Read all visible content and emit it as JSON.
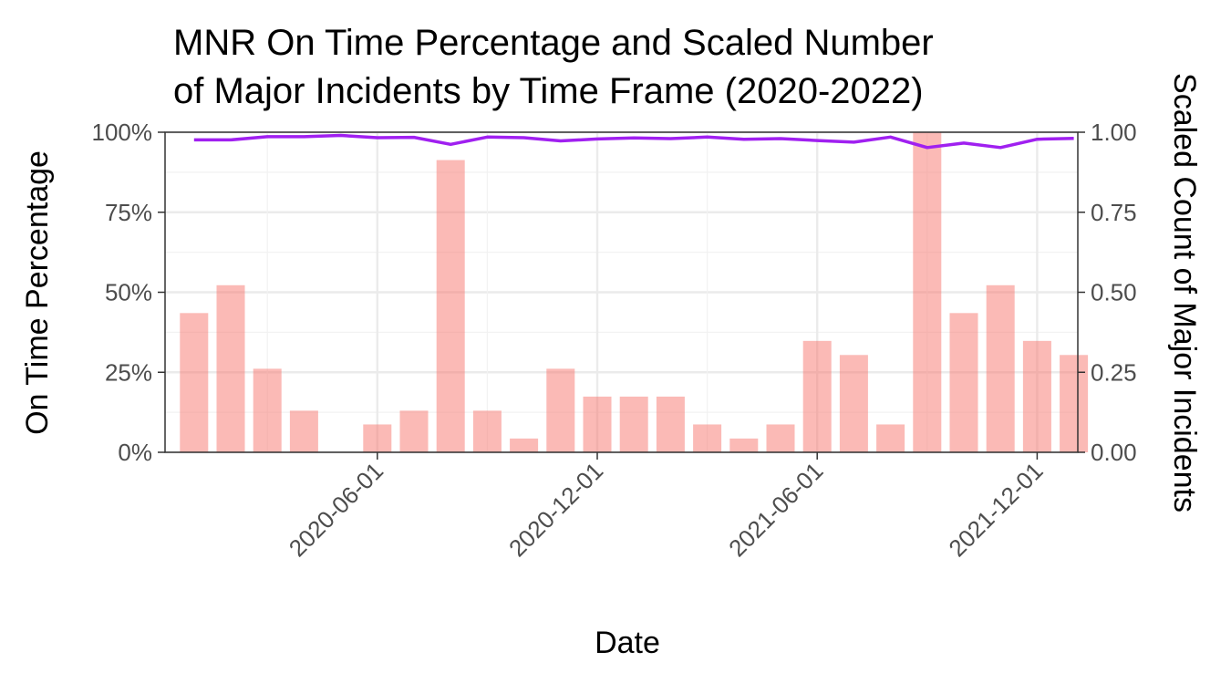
{
  "chart_data": {
    "type": "bar+line",
    "title_lines": [
      "MNR On Time Percentage and Scaled Number",
      "of Major Incidents by Time Frame (2020-2022)"
    ],
    "xlabel": "Date",
    "ylabel_left": "On Time Percentage",
    "ylabel_right": "Scaled Count of Major Incidents",
    "y_left_ticks": [
      "0%",
      "25%",
      "50%",
      "75%",
      "100%"
    ],
    "y_right_ticks": [
      "0.00",
      "0.25",
      "0.50",
      "0.75",
      "1.00"
    ],
    "x_ticks": [
      "2020-06-01",
      "2020-12-01",
      "2021-06-01",
      "2021-12-01"
    ],
    "ylim": [
      0,
      1
    ],
    "months": [
      "2020-01",
      "2020-02",
      "2020-03",
      "2020-04",
      "2020-05",
      "2020-06",
      "2020-07",
      "2020-08",
      "2020-09",
      "2020-10",
      "2020-11",
      "2020-12",
      "2021-01",
      "2021-02",
      "2021-03",
      "2021-04",
      "2021-05",
      "2021-06",
      "2021-07",
      "2021-08",
      "2021-09",
      "2021-10",
      "2021-11",
      "2021-12",
      "2022-01"
    ],
    "series": [
      {
        "name": "Scaled Count of Major Incidents",
        "kind": "bar",
        "color": "#F8766D",
        "values": [
          0.435,
          0.522,
          0.261,
          0.13,
          0.0,
          0.087,
          0.13,
          0.913,
          0.13,
          0.043,
          0.261,
          0.174,
          0.174,
          0.174,
          0.087,
          0.043,
          0.087,
          0.348,
          0.304,
          0.087,
          1.0,
          0.435,
          0.522,
          0.348,
          0.304
        ]
      },
      {
        "name": "On Time Percentage",
        "kind": "line",
        "color": "#A020F0",
        "values": [
          0.976,
          0.976,
          0.986,
          0.986,
          0.99,
          0.983,
          0.984,
          0.962,
          0.985,
          0.983,
          0.973,
          0.979,
          0.982,
          0.98,
          0.985,
          0.978,
          0.98,
          0.974,
          0.969,
          0.985,
          0.952,
          0.966,
          0.952,
          0.978,
          0.981
        ]
      }
    ]
  }
}
